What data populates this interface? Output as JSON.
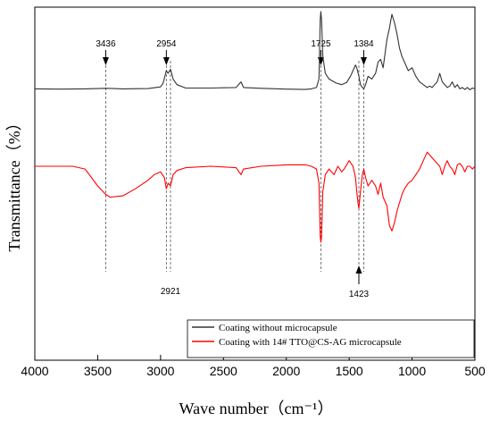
{
  "chart_data": {
    "type": "line",
    "xlabel": "Wave number（cm⁻¹）",
    "ylabel": "Transmittance（%）",
    "xlim": [
      4000,
      500
    ],
    "x_reversed": true,
    "x_ticks": [
      "4000",
      "3500",
      "3000",
      "2500",
      "2000",
      "1500",
      "1000",
      "500"
    ],
    "y_ticks_shown": false,
    "legend_position": "bottom-right",
    "series": [
      {
        "name": "Coating without microcapsule",
        "color": "#333333",
        "x": [
          4000,
          3800,
          3600,
          3436,
          3300,
          3100,
          3000,
          2980,
          2954,
          2940,
          2921,
          2900,
          2870,
          2800,
          2600,
          2400,
          2360,
          2340,
          2200,
          2000,
          1850,
          1800,
          1760,
          1740,
          1730,
          1725,
          1720,
          1710,
          1690,
          1660,
          1620,
          1600,
          1560,
          1520,
          1490,
          1470,
          1450,
          1440,
          1423,
          1410,
          1395,
          1384,
          1370,
          1350,
          1320,
          1290,
          1270,
          1250,
          1230,
          1200,
          1180,
          1160,
          1140,
          1120,
          1100,
          1080,
          1060,
          1030,
          1000,
          970,
          940,
          910,
          880,
          860,
          840,
          820,
          800,
          780,
          760,
          740,
          720,
          700,
          680,
          660,
          640,
          620,
          600,
          580,
          560,
          540,
          520,
          500
        ],
        "y": [
          0.5,
          0.4,
          0.5,
          0.7,
          0.5,
          0.6,
          1.2,
          2.5,
          7.0,
          6.0,
          7.5,
          4.0,
          2.0,
          0.8,
          0.8,
          1.0,
          3.0,
          1.0,
          0.7,
          0.4,
          0.3,
          0.5,
          1.0,
          4.0,
          25.0,
          28.0,
          25.0,
          12.0,
          6.0,
          4.0,
          3.0,
          2.5,
          2.0,
          2.8,
          5.0,
          7.0,
          9.0,
          8.0,
          5.0,
          2.0,
          1.0,
          0.5,
          2.0,
          5.0,
          4.0,
          6.0,
          10.0,
          11.0,
          8.0,
          18.0,
          22.0,
          27.0,
          24.0,
          20.0,
          15.0,
          12.0,
          10.0,
          7.0,
          8.0,
          5.0,
          3.0,
          2.0,
          1.0,
          1.5,
          1.0,
          2.0,
          3.0,
          6.0,
          3.0,
          2.0,
          1.0,
          1.5,
          3.0,
          1.0,
          2.0,
          0.5,
          1.0,
          0.3,
          1.0,
          0.2,
          0.8,
          0.5
        ]
      },
      {
        "name": "Coating with 14# TTO@CS-AG microcapsule",
        "color": "#ff0000",
        "x": [
          4000,
          3800,
          3700,
          3600,
          3500,
          3436,
          3400,
          3300,
          3200,
          3100,
          3050,
          3000,
          2970,
          2954,
          2940,
          2921,
          2900,
          2870,
          2800,
          2600,
          2400,
          2360,
          2340,
          2200,
          2000,
          1850,
          1800,
          1760,
          1740,
          1730,
          1725,
          1720,
          1710,
          1690,
          1660,
          1620,
          1590,
          1560,
          1540,
          1500,
          1470,
          1450,
          1440,
          1430,
          1423,
          1410,
          1395,
          1384,
          1370,
          1350,
          1320,
          1290,
          1270,
          1250,
          1230,
          1200,
          1180,
          1160,
          1140,
          1120,
          1100,
          1080,
          1060,
          1030,
          1000,
          970,
          940,
          910,
          880,
          860,
          840,
          820,
          800,
          780,
          760,
          740,
          720,
          700,
          680,
          660,
          640,
          620,
          600,
          580,
          560,
          540,
          520,
          500
        ],
        "y": [
          -27.0,
          -27.0,
          -27.0,
          -28.0,
          -34.0,
          -37.0,
          -38.0,
          -37.5,
          -35.0,
          -32.0,
          -30.0,
          -29.0,
          -31.0,
          -35.0,
          -33.0,
          -34.0,
          -30.0,
          -28.5,
          -27.5,
          -27.0,
          -27.5,
          -30.0,
          -28.0,
          -27.0,
          -26.5,
          -26.5,
          -27.0,
          -28.0,
          -33.0,
          -52.0,
          -54.0,
          -52.0,
          -36.0,
          -30.0,
          -28.0,
          -30.0,
          -27.0,
          -29.0,
          -28.0,
          -25.0,
          -27.0,
          -31.0,
          -36.0,
          -40.0,
          -42.0,
          -36.0,
          -30.0,
          -28.0,
          -31.0,
          -34.0,
          -32.0,
          -34.0,
          -37.0,
          -33.0,
          -38.0,
          -41.0,
          -48.0,
          -50.0,
          -47.0,
          -43.0,
          -40.0,
          -37.0,
          -35.0,
          -33.0,
          -32.0,
          -30.0,
          -28.0,
          -25.0,
          -22.0,
          -23.0,
          -24.0,
          -25.0,
          -26.0,
          -27.0,
          -30.0,
          -27.0,
          -25.0,
          -27.0,
          -28.0,
          -30.0,
          -26.5,
          -26.0,
          -27.0,
          -29.0,
          -27.0,
          -27.0,
          -28.0,
          -27.0
        ]
      }
    ],
    "annotations": [
      {
        "label": "3436",
        "x": 3436,
        "position": "top"
      },
      {
        "label": "2954",
        "x": 2954,
        "position": "top"
      },
      {
        "label": "1725",
        "x": 1725,
        "position": "top"
      },
      {
        "label": "1384",
        "x": 1384,
        "position": "top"
      },
      {
        "label": "2921",
        "x": 2921,
        "position": "bottom"
      },
      {
        "label": "1423",
        "x": 1423,
        "position": "bottom"
      }
    ]
  }
}
